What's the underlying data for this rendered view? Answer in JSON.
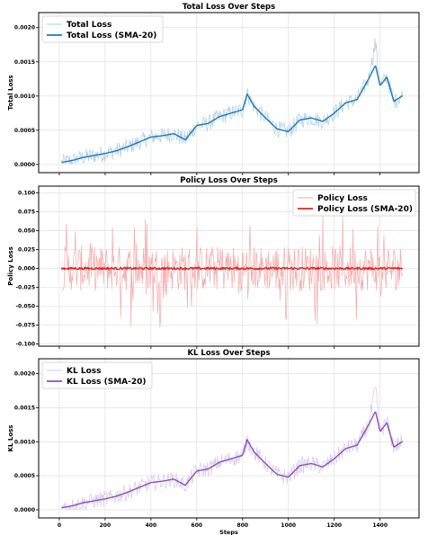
{
  "chart_data": [
    {
      "type": "line",
      "title": "Total Loss Over Steps",
      "xlabel": "",
      "ylabel": "Total Loss",
      "xlim": [
        -90,
        1570
      ],
      "ylim": [
        -0.00012,
        0.00222
      ],
      "yticks": [
        0.0,
        0.0005,
        0.001,
        0.0015,
        0.002
      ],
      "ytick_labels": [
        "0.0000",
        "0.0005",
        "0.0010",
        "0.0015",
        "0.0020"
      ],
      "grid": true,
      "legend_position": "top-left",
      "x": [
        10,
        60,
        100,
        150,
        200,
        250,
        300,
        350,
        400,
        450,
        500,
        550,
        600,
        650,
        700,
        750,
        800,
        820,
        850,
        900,
        950,
        1000,
        1050,
        1100,
        1150,
        1200,
        1250,
        1300,
        1350,
        1380,
        1400,
        1430,
        1460,
        1500
      ],
      "series": [
        {
          "name": "Total Loss",
          "color": "#aecde6",
          "values": [
            3e-05,
            6e-05,
            0.0001,
            0.00013,
            0.00016,
            0.0002,
            0.00026,
            0.00033,
            0.0004,
            0.00042,
            0.00045,
            0.00036,
            0.00057,
            0.0006,
            0.0007,
            0.00075,
            0.0008,
            0.00103,
            0.00085,
            0.00068,
            0.00052,
            0.00048,
            0.00065,
            0.00068,
            0.00063,
            0.00075,
            0.0009,
            0.00095,
            0.00125,
            0.00178,
            0.00115,
            0.00128,
            0.00092,
            0.00101
          ],
          "noise": 0.00012
        },
        {
          "name": "Total Loss (SMA-20)",
          "color": "#1f77b4",
          "values": [
            3e-05,
            6e-05,
            0.0001,
            0.00013,
            0.00016,
            0.0002,
            0.00026,
            0.00033,
            0.0004,
            0.00042,
            0.00045,
            0.00036,
            0.00057,
            0.0006,
            0.0007,
            0.00075,
            0.0008,
            0.00103,
            0.00085,
            0.00068,
            0.00052,
            0.00048,
            0.00065,
            0.00068,
            0.00063,
            0.00075,
            0.0009,
            0.00095,
            0.00125,
            0.00145,
            0.00115,
            0.00128,
            0.00092,
            0.00101
          ],
          "noise": 0
        }
      ]
    },
    {
      "type": "line",
      "title": "Policy Loss Over Steps",
      "xlabel": "",
      "ylabel": "Policy Loss",
      "xlim": [
        -90,
        1570
      ],
      "ylim": [
        -0.103,
        0.109
      ],
      "yticks": [
        -0.1,
        -0.075,
        -0.05,
        -0.025,
        0.0,
        0.025,
        0.05,
        0.075,
        0.1
      ],
      "ytick_labels": [
        "-0.100",
        "-0.075",
        "-0.050",
        "-0.025",
        "0.000",
        "0.025",
        "0.050",
        "0.075",
        "0.100"
      ],
      "grid": true,
      "legend_position": "top-right",
      "x": [
        10,
        1500
      ],
      "series": [
        {
          "name": "Policy Loss",
          "color": "#f4a9a9",
          "values": [
            0.0,
            0.0
          ],
          "noise": 0.03
        },
        {
          "name": "Policy Loss (SMA-20)",
          "color": "#d62728",
          "values": [
            0.0,
            0.0
          ],
          "noise": 0.0015
        }
      ]
    },
    {
      "type": "line",
      "title": "KL Loss Over Steps",
      "xlabel": "Steps",
      "ylabel": "KL Loss",
      "xlim": [
        -90,
        1570
      ],
      "ylim": [
        -0.00012,
        0.00222
      ],
      "xticks": [
        0,
        200,
        400,
        600,
        800,
        1000,
        1200,
        1400
      ],
      "xtick_labels": [
        "0",
        "200",
        "400",
        "600",
        "800",
        "1000",
        "1200",
        "1400"
      ],
      "yticks": [
        0.0,
        0.0005,
        0.001,
        0.0015,
        0.002
      ],
      "ytick_labels": [
        "0.0000",
        "0.0005",
        "0.0010",
        "0.0015",
        "0.0020"
      ],
      "grid": true,
      "legend_position": "top-left",
      "x": [
        10,
        60,
        100,
        150,
        200,
        250,
        300,
        350,
        400,
        450,
        500,
        550,
        600,
        650,
        700,
        750,
        800,
        820,
        850,
        900,
        950,
        1000,
        1050,
        1100,
        1150,
        1200,
        1250,
        1300,
        1350,
        1380,
        1400,
        1430,
        1460,
        1500
      ],
      "series": [
        {
          "name": "KL Loss",
          "color": "#d6c8ea",
          "values": [
            3e-05,
            6e-05,
            0.0001,
            0.00013,
            0.00016,
            0.0002,
            0.00026,
            0.00033,
            0.0004,
            0.00042,
            0.00045,
            0.00036,
            0.00057,
            0.0006,
            0.0007,
            0.00075,
            0.0008,
            0.00103,
            0.00085,
            0.00068,
            0.00052,
            0.00048,
            0.00065,
            0.00068,
            0.00063,
            0.00075,
            0.0009,
            0.00095,
            0.00125,
            0.00178,
            0.00115,
            0.00128,
            0.00092,
            0.00101
          ],
          "noise": 0.00012
        },
        {
          "name": "KL Loss (SMA-20)",
          "color": "#8b4fb8",
          "values": [
            3e-05,
            6e-05,
            0.0001,
            0.00013,
            0.00016,
            0.0002,
            0.00026,
            0.00033,
            0.0004,
            0.00042,
            0.00045,
            0.00036,
            0.00057,
            0.0006,
            0.0007,
            0.00075,
            0.0008,
            0.00103,
            0.00085,
            0.00068,
            0.00052,
            0.00048,
            0.00065,
            0.00068,
            0.00063,
            0.00075,
            0.0009,
            0.00095,
            0.00125,
            0.00145,
            0.00115,
            0.00128,
            0.00092,
            0.00101
          ],
          "noise": 0
        }
      ]
    }
  ]
}
